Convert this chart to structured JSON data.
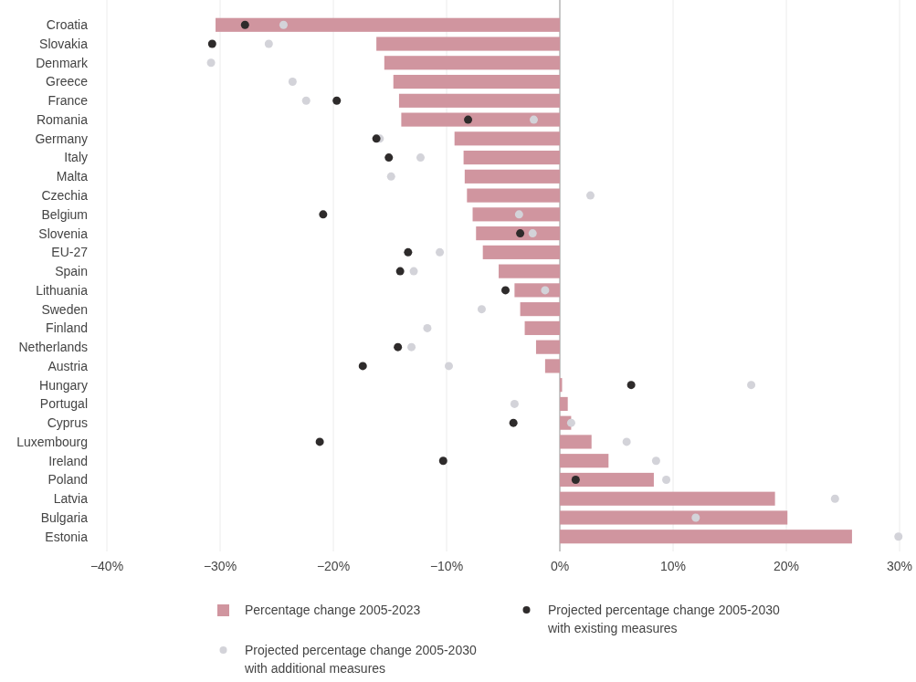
{
  "chart_data": {
    "type": "bar",
    "orientation": "horizontal",
    "categories": [
      "Croatia",
      "Slovakia",
      "Denmark",
      "Greece",
      "France",
      "Romania",
      "Germany",
      "Italy",
      "Malta",
      "Czechia",
      "Belgium",
      "Slovenia",
      "EU-27",
      "Spain",
      "Lithuania",
      "Sweden",
      "Finland",
      "Netherlands",
      "Austria",
      "Hungary",
      "Portugal",
      "Cyprus",
      "Luxembourg",
      "Ireland",
      "Poland",
      "Latvia",
      "Bulgaria",
      "Estonia"
    ],
    "series": [
      {
        "name": "Percentage change 2005-2023",
        "color": "#d0959f",
        "values": [
          -30.4,
          -16.2,
          -15.5,
          -14.7,
          -14.2,
          -14.0,
          -9.3,
          -8.5,
          -8.4,
          -8.2,
          -7.7,
          -7.4,
          -6.8,
          -5.4,
          -4.0,
          -3.5,
          -3.1,
          -2.1,
          -1.3,
          0.2,
          0.7,
          1.0,
          2.8,
          4.3,
          8.3,
          19.0,
          20.1,
          25.8
        ]
      },
      {
        "name": "Projected percentage change 2005-2030 with additional measures",
        "type": "scatter",
        "color": "#d3d3d9",
        "values": [
          -24.4,
          -25.7,
          -30.8,
          -23.6,
          -22.4,
          -2.3,
          -15.9,
          -12.3,
          -14.9,
          2.7,
          -3.6,
          -2.4,
          -10.6,
          -12.9,
          -1.3,
          -6.9,
          -11.7,
          -13.1,
          -9.8,
          16.9,
          -4.0,
          1.0,
          5.9,
          8.5,
          9.4,
          24.3,
          12.0,
          29.9
        ]
      },
      {
        "name": "Projected percentage change 2005-2030 with existing measures",
        "type": "scatter",
        "color": "#2e2b2b",
        "values": [
          -27.8,
          -30.7,
          null,
          null,
          -19.7,
          -8.1,
          -16.2,
          -15.1,
          null,
          null,
          -20.9,
          -3.5,
          -13.4,
          -14.1,
          -4.8,
          null,
          null,
          -14.3,
          -17.4,
          6.3,
          null,
          -4.1,
          -21.2,
          -10.3,
          1.4,
          null,
          null,
          null
        ]
      }
    ],
    "xlim": [
      -40,
      30
    ],
    "xticks": [
      {
        "value": -40,
        "label": "−40%"
      },
      {
        "value": -30,
        "label": "−30%"
      },
      {
        "value": -20,
        "label": "−20%"
      },
      {
        "value": -10,
        "label": "−10%"
      },
      {
        "value": 0,
        "label": "0%"
      },
      {
        "value": 10,
        "label": "10%"
      },
      {
        "value": 20,
        "label": "20%"
      },
      {
        "value": 30,
        "label": "30%"
      }
    ],
    "grid": "x",
    "legend": "bottom",
    "marker": "circle"
  }
}
